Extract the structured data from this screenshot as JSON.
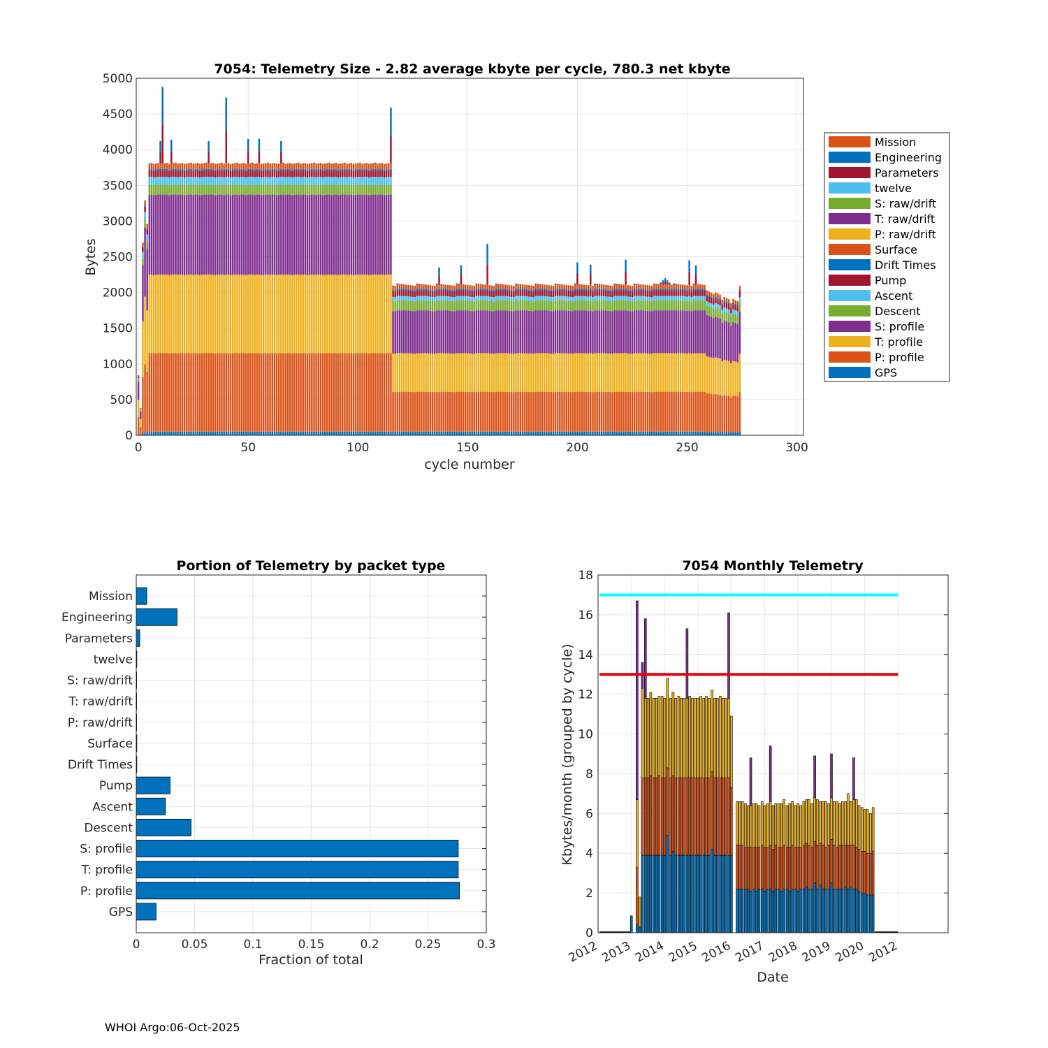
{
  "footer": "WHOI Argo:06-Oct-2025",
  "colors": {
    "blue": "#0072BD",
    "orange": "#D95319",
    "yellow": "#EDB120",
    "purple": "#7E2F8E",
    "green": "#77AC30",
    "cyan": "#4DBEEE",
    "red": "#A2142F",
    "limit_red": "#e8000b",
    "limit_cyan": "#00ffff"
  },
  "chart_data": [
    {
      "id": "telemetry_size",
      "type": "bar",
      "stacked": true,
      "title": "7054: Telemetry Size - 2.82 average kbyte per cycle,  780.3 net kbyte",
      "xlabel": "cycle number",
      "ylabel": "Bytes",
      "xlim": [
        -1,
        303
      ],
      "ylim": [
        0,
        5000
      ],
      "xticks": [
        0,
        50,
        100,
        150,
        200,
        250,
        300
      ],
      "yticks": [
        0,
        500,
        1000,
        1500,
        2000,
        2500,
        3000,
        3500,
        4000,
        4500,
        5000
      ],
      "grid": true,
      "legend_position": "outside-right",
      "legend": [
        "Mission",
        "Engineering",
        "Parameters",
        "twelve",
        "S: raw/drift",
        "T: raw/drift",
        "P: raw/drift",
        "Surface",
        "Drift Times",
        "Pump",
        "Ascent",
        "Descent",
        "S: profile",
        "T: profile",
        "P: profile",
        "GPS"
      ],
      "legend_colors": [
        "#D95319",
        "#0072BD",
        "#A2142F",
        "#4DBEEE",
        "#77AC30",
        "#7E2F8E",
        "#EDB120",
        "#D95319",
        "#0072BD",
        "#A2142F",
        "#4DBEEE",
        "#77AC30",
        "#7E2F8E",
        "#EDB120",
        "#D95319",
        "#0072BD"
      ],
      "stack_order": [
        "GPS",
        "P: profile",
        "T: profile",
        "S: profile",
        "Descent",
        "Ascent",
        "Pump",
        "Drift Times",
        "Engineering"
      ],
      "stack_colors": [
        "#0072BD",
        "#D95319",
        "#EDB120",
        "#7E2F8E",
        "#77AC30",
        "#4DBEEE",
        "#A2142F",
        "#0072BD",
        "#D95319"
      ],
      "phase1": {
        "cycles": [
          5,
          114
        ],
        "GPS": 50,
        "P: profile": 1100,
        "T: profile": 1100,
        "S: profile": 1120,
        "Descent": 140,
        "Ascent": 110,
        "Pump": 90,
        "Drift Times": 20,
        "Engineering": 80,
        "total": 3810
      },
      "phase2": {
        "cycles": [
          115,
          274
        ],
        "GPS": 50,
        "P: profile": 560,
        "T: profile": 540,
        "S: profile": 600,
        "Descent": 140,
        "Ascent": 60,
        "Pump": 80,
        "Drift Times": 20,
        "Engineering": 60,
        "total": 2110
      },
      "early_cycles": [
        {
          "cycle": 0,
          "total": 840
        },
        {
          "cycle": 1,
          "total": 380
        },
        {
          "cycle": 2,
          "total": 2700
        },
        {
          "cycle": 3,
          "total": 3290
        },
        {
          "cycle": 4,
          "total": 2960
        }
      ],
      "peaks": [
        {
          "cycle": 11,
          "total": 4880
        },
        {
          "cycle": 40,
          "total": 4730
        },
        {
          "cycle": 115,
          "total": 4590
        },
        {
          "cycle": 10,
          "total": 4120
        },
        {
          "cycle": 15,
          "total": 4140
        },
        {
          "cycle": 32,
          "total": 4120
        },
        {
          "cycle": 50,
          "total": 4150
        },
        {
          "cycle": 55,
          "total": 4150
        },
        {
          "cycle": 65,
          "total": 4120
        },
        {
          "cycle": 159,
          "total": 2680
        },
        {
          "cycle": 137,
          "total": 2350
        },
        {
          "cycle": 147,
          "total": 2380
        },
        {
          "cycle": 200,
          "total": 2420
        },
        {
          "cycle": 206,
          "total": 2390
        },
        {
          "cycle": 222,
          "total": 2460
        },
        {
          "cycle": 251,
          "total": 2450
        },
        {
          "cycle": 254,
          "total": 2380
        }
      ],
      "tail": [
        {
          "cycle": 262,
          "total": 1980
        },
        {
          "cycle": 266,
          "total": 1900
        },
        {
          "cycle": 270,
          "total": 1850
        },
        {
          "cycle": 274,
          "total": 2090
        }
      ]
    },
    {
      "id": "portion_by_packet",
      "type": "bar",
      "orientation": "horizontal",
      "title": "Portion of Telemetry by packet type",
      "xlabel": "Fraction of total",
      "ylabel": "",
      "xlim": [
        0,
        0.3
      ],
      "xticks": [
        0,
        0.05,
        0.1,
        0.15,
        0.2,
        0.25,
        0.3
      ],
      "xtick_labels": [
        "0",
        "0.05",
        "0.1",
        "0.15",
        "0.2",
        "0.25",
        "0.3"
      ],
      "grid": true,
      "categories": [
        "Mission",
        "Engineering",
        "Parameters",
        "twelve",
        "S: raw/drift",
        "T: raw/drift",
        "P: raw/drift",
        "Surface",
        "Drift Times",
        "Pump",
        "Ascent",
        "Descent",
        "S: profile",
        "T: profile",
        "P: profile",
        "GPS"
      ],
      "values": [
        0.009,
        0.035,
        0.003,
        0.0005,
        0.0003,
        0.0003,
        0.0003,
        0.0005,
        0.0005,
        0.029,
        0.025,
        0.047,
        0.276,
        0.276,
        0.277,
        0.017
      ],
      "color": "#0072BD"
    },
    {
      "id": "monthly_telemetry",
      "type": "bar",
      "stacked": true,
      "title": "7054 Monthly Telemetry",
      "xlabel": "Date",
      "ylabel": "Kbytes/month (grouped by cycle)",
      "ylim": [
        0,
        18
      ],
      "yticks": [
        0,
        2,
        4,
        6,
        8,
        10,
        12,
        14,
        16,
        18
      ],
      "xtick_labels": [
        "2012",
        "2013",
        "2014",
        "2015",
        "2016",
        "2017",
        "2018",
        "2019",
        "2020",
        "2012"
      ],
      "xlim_years": [
        2012.0,
        2022.5
      ],
      "grid": true,
      "limit_lines": [
        {
          "value": 17,
          "color": "#00ffff"
        },
        {
          "value": 13,
          "color": "#e8000b"
        }
      ],
      "series_names": [
        "blue segment",
        "orange segment",
        "yellow segment",
        "purple spike"
      ],
      "months": [
        {
          "year": 2013.0,
          "values": [
            0.85,
            0,
            0,
            0
          ]
        },
        {
          "year": 2013.17,
          "values": [
            0.4,
            2.9,
            3.4,
            10.0
          ]
        },
        {
          "year": 2013.25,
          "values": [
            0.3,
            0,
            1.5,
            0
          ]
        },
        {
          "year": 2013.33,
          "values": [
            3.9,
            3.9,
            4.5,
            1.3
          ]
        },
        {
          "year": 2013.42,
          "values": [
            3.9,
            3.9,
            4.0,
            4.0
          ]
        },
        {
          "year": 2013.5,
          "values": [
            3.9,
            3.9,
            4.0,
            0
          ]
        },
        {
          "year": 2013.58,
          "values": [
            3.9,
            4.0,
            4.2,
            0
          ]
        },
        {
          "year": 2013.67,
          "values": [
            3.9,
            3.9,
            4.0,
            0
          ]
        },
        {
          "year": 2013.75,
          "values": [
            3.9,
            3.9,
            4.0,
            0
          ]
        },
        {
          "year": 2013.83,
          "values": [
            3.9,
            4.0,
            4.0,
            0
          ]
        },
        {
          "year": 2013.92,
          "values": [
            3.9,
            3.9,
            4.1,
            0
          ]
        },
        {
          "year": 2014.0,
          "values": [
            3.9,
            3.9,
            4.0,
            0
          ]
        },
        {
          "year": 2014.08,
          "values": [
            4.9,
            3.4,
            4.5,
            0
          ]
        },
        {
          "year": 2014.17,
          "values": [
            3.9,
            3.9,
            4.0,
            0
          ]
        },
        {
          "year": 2014.25,
          "values": [
            4.1,
            3.8,
            4.2,
            0
          ]
        },
        {
          "year": 2014.33,
          "values": [
            3.9,
            3.9,
            4.0,
            0
          ]
        },
        {
          "year": 2014.42,
          "values": [
            3.9,
            3.9,
            4.1,
            0
          ]
        },
        {
          "year": 2014.5,
          "values": [
            3.9,
            3.9,
            4.0,
            0
          ]
        },
        {
          "year": 2014.58,
          "values": [
            3.9,
            3.9,
            4.0,
            0
          ]
        },
        {
          "year": 2014.67,
          "values": [
            3.9,
            3.9,
            4.0,
            3.5
          ]
        },
        {
          "year": 2014.75,
          "values": [
            3.9,
            3.9,
            4.1,
            0
          ]
        },
        {
          "year": 2014.83,
          "values": [
            3.9,
            3.9,
            4.0,
            0
          ]
        },
        {
          "year": 2014.92,
          "values": [
            3.9,
            3.9,
            4.0,
            0
          ]
        },
        {
          "year": 2015.0,
          "values": [
            3.9,
            3.9,
            4.0,
            0
          ]
        },
        {
          "year": 2015.08,
          "values": [
            3.9,
            3.9,
            4.1,
            0
          ]
        },
        {
          "year": 2015.17,
          "values": [
            3.9,
            3.9,
            4.0,
            0
          ]
        },
        {
          "year": 2015.25,
          "values": [
            3.9,
            3.9,
            4.1,
            0
          ]
        },
        {
          "year": 2015.33,
          "values": [
            3.9,
            3.9,
            4.0,
            0
          ]
        },
        {
          "year": 2015.42,
          "values": [
            4.2,
            3.9,
            4.1,
            0
          ]
        },
        {
          "year": 2015.5,
          "values": [
            3.9,
            3.9,
            4.0,
            0
          ]
        },
        {
          "year": 2015.58,
          "values": [
            3.9,
            3.9,
            4.0,
            0
          ]
        },
        {
          "year": 2015.67,
          "values": [
            3.9,
            3.9,
            4.1,
            0
          ]
        },
        {
          "year": 2015.75,
          "values": [
            3.9,
            3.9,
            4.0,
            0
          ]
        },
        {
          "year": 2015.83,
          "values": [
            3.9,
            3.9,
            4.0,
            0
          ]
        },
        {
          "year": 2015.92,
          "values": [
            3.9,
            3.9,
            4.0,
            4.3
          ]
        },
        {
          "year": 2016.0,
          "values": [
            3.9,
            3.4,
            3.6,
            0
          ]
        },
        {
          "year": 2016.17,
          "values": [
            2.2,
            2.2,
            2.2,
            0
          ]
        },
        {
          "year": 2016.25,
          "values": [
            2.2,
            2.2,
            2.2,
            0
          ]
        },
        {
          "year": 2016.33,
          "values": [
            2.2,
            2.2,
            2.2,
            0
          ]
        },
        {
          "year": 2016.42,
          "values": [
            2.2,
            2.1,
            2.2,
            0
          ]
        },
        {
          "year": 2016.5,
          "values": [
            2.2,
            2.1,
            2.1,
            0
          ]
        },
        {
          "year": 2016.58,
          "values": [
            2.1,
            2.2,
            2.1,
            2.4
          ]
        },
        {
          "year": 2016.67,
          "values": [
            2.2,
            2.1,
            2.2,
            0
          ]
        },
        {
          "year": 2016.75,
          "values": [
            2.1,
            2.2,
            2.2,
            0
          ]
        },
        {
          "year": 2016.83,
          "values": [
            2.2,
            2.1,
            2.1,
            0
          ]
        },
        {
          "year": 2016.92,
          "values": [
            2.2,
            2.2,
            2.2,
            0
          ]
        },
        {
          "year": 2017.0,
          "values": [
            2.1,
            2.2,
            2.1,
            0
          ]
        },
        {
          "year": 2017.08,
          "values": [
            2.2,
            2.1,
            2.2,
            0
          ]
        },
        {
          "year": 2017.17,
          "values": [
            2.2,
            2.2,
            2.2,
            2.8
          ]
        },
        {
          "year": 2017.25,
          "values": [
            2.1,
            2.1,
            2.2,
            0
          ]
        },
        {
          "year": 2017.33,
          "values": [
            2.2,
            2.2,
            2.1,
            0
          ]
        },
        {
          "year": 2017.42,
          "values": [
            2.2,
            2.1,
            2.2,
            0
          ]
        },
        {
          "year": 2017.5,
          "values": [
            2.1,
            2.2,
            2.2,
            0
          ]
        },
        {
          "year": 2017.58,
          "values": [
            2.2,
            2.2,
            2.3,
            0
          ]
        },
        {
          "year": 2017.67,
          "values": [
            2.2,
            2.1,
            2.1,
            0
          ]
        },
        {
          "year": 2017.75,
          "values": [
            2.1,
            2.2,
            2.2,
            0
          ]
        },
        {
          "year": 2017.83,
          "values": [
            2.2,
            2.2,
            2.2,
            0
          ]
        },
        {
          "year": 2017.92,
          "values": [
            2.2,
            2.1,
            2.1,
            0
          ]
        },
        {
          "year": 2018.0,
          "values": [
            2.1,
            2.2,
            2.2,
            0
          ]
        },
        {
          "year": 2018.08,
          "values": [
            2.2,
            2.1,
            2.1,
            0
          ]
        },
        {
          "year": 2018.17,
          "values": [
            2.2,
            2.2,
            2.2,
            0
          ]
        },
        {
          "year": 2018.25,
          "values": [
            2.3,
            2.2,
            2.2,
            0
          ]
        },
        {
          "year": 2018.33,
          "values": [
            2.2,
            2.2,
            2.3,
            0
          ]
        },
        {
          "year": 2018.42,
          "values": [
            2.2,
            2.1,
            2.2,
            0
          ]
        },
        {
          "year": 2018.5,
          "values": [
            2.5,
            2.1,
            2.2,
            2.1
          ]
        },
        {
          "year": 2018.58,
          "values": [
            2.2,
            2.2,
            2.3,
            0
          ]
        },
        {
          "year": 2018.67,
          "values": [
            2.4,
            2.1,
            2.1,
            0
          ]
        },
        {
          "year": 2018.75,
          "values": [
            2.2,
            2.2,
            2.2,
            0
          ]
        },
        {
          "year": 2018.83,
          "values": [
            2.2,
            2.1,
            2.3,
            0
          ]
        },
        {
          "year": 2018.92,
          "values": [
            2.2,
            2.2,
            2.1,
            0
          ]
        },
        {
          "year": 2019.0,
          "values": [
            2.5,
            2.2,
            2.1,
            2.2
          ]
        },
        {
          "year": 2019.08,
          "values": [
            2.2,
            2.2,
            2.2,
            0
          ]
        },
        {
          "year": 2019.17,
          "values": [
            2.2,
            2.1,
            2.3,
            0
          ]
        },
        {
          "year": 2019.25,
          "values": [
            2.2,
            2.2,
            2.1,
            0
          ]
        },
        {
          "year": 2019.33,
          "values": [
            2.2,
            2.2,
            2.2,
            0
          ]
        },
        {
          "year": 2019.42,
          "values": [
            2.3,
            2.1,
            2.2,
            0
          ]
        },
        {
          "year": 2019.5,
          "values": [
            2.2,
            2.2,
            2.6,
            0
          ]
        },
        {
          "year": 2019.58,
          "values": [
            2.3,
            2.1,
            2.2,
            0
          ]
        },
        {
          "year": 2019.67,
          "values": [
            2.2,
            2.2,
            2.3,
            2.1
          ]
        },
        {
          "year": 2019.75,
          "values": [
            2.2,
            2.1,
            2.4,
            0
          ]
        },
        {
          "year": 2019.83,
          "values": [
            2.1,
            2.1,
            2.2,
            0
          ]
        },
        {
          "year": 2019.92,
          "values": [
            2.0,
            2.1,
            2.2,
            0
          ]
        },
        {
          "year": 2020.0,
          "values": [
            2.0,
            2.1,
            2.1,
            0
          ]
        },
        {
          "year": 2020.08,
          "values": [
            1.9,
            2.1,
            2.2,
            0
          ]
        },
        {
          "year": 2020.17,
          "values": [
            1.9,
            2.1,
            2.0,
            0
          ]
        },
        {
          "year": 2020.25,
          "values": [
            1.9,
            2.2,
            2.2,
            0
          ]
        }
      ]
    }
  ]
}
